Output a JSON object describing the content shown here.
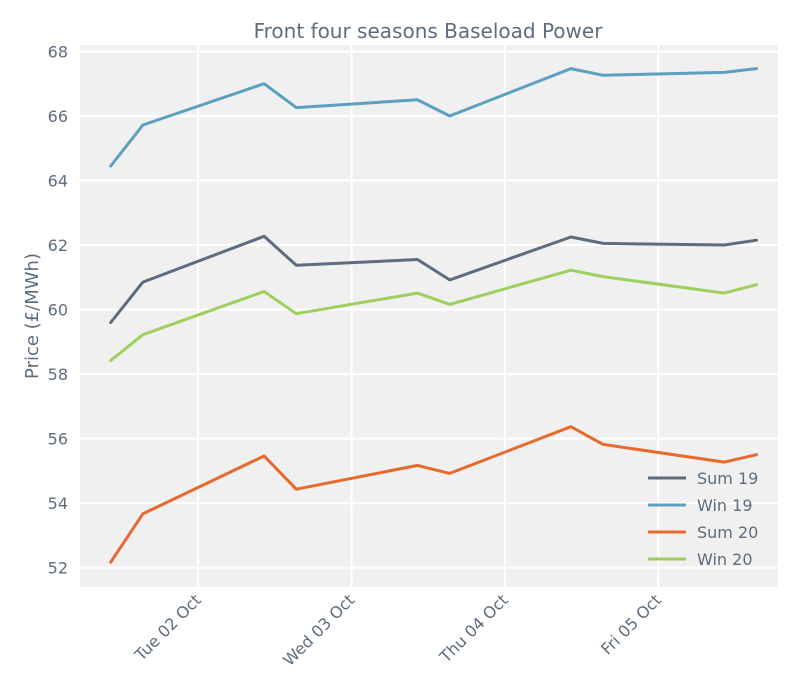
{
  "chart_data": {
    "type": "line",
    "title": "Front four seasons Baseload Power",
    "xlabel": "",
    "ylabel": "Price (£/MWh)",
    "x_range": [
      -0.2,
      4.35
    ],
    "ylim": [
      51.4,
      68.2
    ],
    "y_ticks": [
      52,
      54,
      56,
      58,
      60,
      62,
      64,
      66,
      68
    ],
    "x_ticks": [
      {
        "pos": 0.57,
        "label": "Tue 02 Oct"
      },
      {
        "pos": 1.57,
        "label": "Wed 03 Oct"
      },
      {
        "pos": 2.57,
        "label": "Thu 04 Oct"
      },
      {
        "pos": 3.57,
        "label": "Fri 05 Oct"
      }
    ],
    "x": [
      0.0,
      0.21,
      1.0,
      1.21,
      2.0,
      2.21,
      3.0,
      3.21,
      4.0,
      4.21
    ],
    "series": [
      {
        "name": "Sum 19",
        "color": "#5d6d7e",
        "values": [
          59.6,
          60.85,
          62.27,
          61.37,
          61.55,
          60.92,
          62.25,
          62.05,
          62.0,
          62.15
        ]
      },
      {
        "name": "Win 19",
        "color": "#5b9fc1",
        "values": [
          64.45,
          65.72,
          67.0,
          66.26,
          66.5,
          66.0,
          67.47,
          67.26,
          67.35,
          67.47
        ]
      },
      {
        "name": "Sum 20",
        "color": "#e8692c",
        "values": [
          52.17,
          53.67,
          55.46,
          54.43,
          55.17,
          54.92,
          56.37,
          55.82,
          55.27,
          55.5
        ]
      },
      {
        "name": "Win 20",
        "color": "#9ed05f",
        "values": [
          58.42,
          59.22,
          60.56,
          59.87,
          60.51,
          60.16,
          61.22,
          61.02,
          60.51,
          60.77
        ]
      }
    ],
    "grid": true,
    "legend_location": "lower-right"
  }
}
